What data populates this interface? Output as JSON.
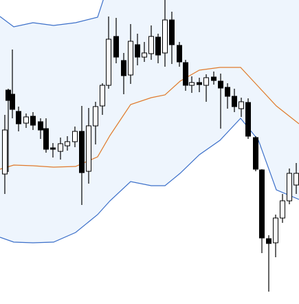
{
  "chart_data": {
    "type": "candlestick",
    "title": "",
    "xlabel": "",
    "ylabel": "",
    "ylim": [
      0,
      442
    ],
    "grid": false,
    "legend": "none",
    "colors": {
      "band_fill": "#eef5fd",
      "band_line": "#3b6fc9",
      "middle_line": "#e07a2b",
      "candle": "#000000",
      "up_body": "#ffffff",
      "down_body": "#000000"
    },
    "bollinger": {
      "x": [
        0,
        20,
        48,
        78,
        110,
        142,
        160,
        190,
        220,
        240,
        262,
        290,
        320,
        350,
        376,
        402,
        435
      ],
      "upper": [
        418,
        403,
        409,
        405,
        409,
        417,
        472,
        513,
        531,
        550,
        562,
        570,
        578,
        564,
        482,
        467,
        460
      ],
      "middle": [
        196,
        202,
        201,
        199,
        200,
        214,
        245,
        290,
        300,
        304,
        324,
        340,
        344,
        344,
        316,
        288,
        262
      ],
      "lower": [
        97,
        90,
        89,
        90,
        104,
        130,
        150,
        178,
        172,
        172,
        190,
        217,
        238,
        270,
        238,
        166,
        152
      ]
    },
    "candles": [
      {
        "x": 7,
        "open": 189,
        "close": 253,
        "high": 275,
        "low": 160
      },
      {
        "x": 12,
        "open": 311,
        "close": 296,
        "high": 313,
        "low": 192
      },
      {
        "x": 18,
        "open": 305,
        "close": 283,
        "high": 370,
        "low": 270
      },
      {
        "x": 27,
        "open": 280,
        "close": 262,
        "high": 287,
        "low": 251
      },
      {
        "x": 38,
        "open": 263,
        "close": 272,
        "high": 277,
        "low": 256
      },
      {
        "x": 48,
        "open": 273,
        "close": 260,
        "high": 279,
        "low": 253
      },
      {
        "x": 59,
        "open": 265,
        "close": 253,
        "high": 270,
        "low": 240
      },
      {
        "x": 67,
        "open": 255,
        "close": 225,
        "high": 270,
        "low": 220
      },
      {
        "x": 77,
        "open": 227,
        "close": 225,
        "high": 234,
        "low": 213
      },
      {
        "x": 88,
        "open": 222,
        "close": 233,
        "high": 242,
        "low": 210
      },
      {
        "x": 98,
        "open": 230,
        "close": 236,
        "high": 244,
        "low": 223
      },
      {
        "x": 109,
        "open": 236,
        "close": 251,
        "high": 258,
        "low": 228
      },
      {
        "x": 119,
        "open": 251,
        "close": 191,
        "high": 288,
        "low": 144
      },
      {
        "x": 129,
        "open": 193,
        "close": 259,
        "high": 285,
        "low": 175
      },
      {
        "x": 139,
        "open": 259,
        "close": 287,
        "high": 294,
        "low": 232
      },
      {
        "x": 149,
        "open": 288,
        "close": 318,
        "high": 321,
        "low": 275
      },
      {
        "x": 158,
        "open": 318,
        "close": 385,
        "high": 418,
        "low": 313
      },
      {
        "x": 169,
        "open": 389,
        "close": 359,
        "high": 416,
        "low": 350
      },
      {
        "x": 180,
        "open": 354,
        "close": 332,
        "high": 365,
        "low": 305
      },
      {
        "x": 190,
        "open": 333,
        "close": 382,
        "high": 407,
        "low": 320
      },
      {
        "x": 200,
        "open": 377,
        "close": 359,
        "high": 393,
        "low": 347
      },
      {
        "x": 210,
        "open": 359,
        "close": 365,
        "high": 381,
        "low": 352
      },
      {
        "x": 220,
        "open": 364,
        "close": 389,
        "high": 405,
        "low": 355
      },
      {
        "x": 230,
        "open": 388,
        "close": 362,
        "high": 393,
        "low": 350
      },
      {
        "x": 240,
        "open": 365,
        "close": 413,
        "high": 442,
        "low": 345
      },
      {
        "x": 250,
        "open": 413,
        "close": 377,
        "high": 425,
        "low": 349
      },
      {
        "x": 261,
        "open": 376,
        "close": 352,
        "high": 381,
        "low": 345
      },
      {
        "x": 270,
        "open": 351,
        "close": 318,
        "high": 355,
        "low": 310
      },
      {
        "x": 279,
        "open": 318,
        "close": 322,
        "high": 331,
        "low": 307
      },
      {
        "x": 290,
        "open": 322,
        "close": 319,
        "high": 329,
        "low": 308
      },
      {
        "x": 300,
        "open": 318,
        "close": 329,
        "high": 334,
        "low": 294
      },
      {
        "x": 311,
        "open": 330,
        "close": 325,
        "high": 338,
        "low": 319
      },
      {
        "x": 321,
        "open": 324,
        "close": 314,
        "high": 335,
        "low": 255
      },
      {
        "x": 331,
        "open": 315,
        "close": 302,
        "high": 321,
        "low": 284
      },
      {
        "x": 341,
        "open": 302,
        "close": 287,
        "high": 313,
        "low": 279
      },
      {
        "x": 351,
        "open": 284,
        "close": 294,
        "high": 300,
        "low": 272
      },
      {
        "x": 361,
        "open": 293,
        "close": 244,
        "high": 299,
        "low": 240
      },
      {
        "x": 372,
        "open": 242,
        "close": 196,
        "high": 244,
        "low": 193
      },
      {
        "x": 381,
        "open": 195,
        "close": 96,
        "high": 196,
        "low": 74
      },
      {
        "x": 391,
        "open": 95,
        "close": 88,
        "high": 100,
        "low": 18
      },
      {
        "x": 401,
        "open": 89,
        "close": 125,
        "high": 130,
        "low": 68
      },
      {
        "x": 411,
        "open": 125,
        "close": 150,
        "high": 160,
        "low": 118
      },
      {
        "x": 421,
        "open": 150,
        "close": 190,
        "high": 197,
        "low": 145
      },
      {
        "x": 431,
        "open": 173,
        "close": 190,
        "high": 205,
        "low": 160
      }
    ]
  }
}
